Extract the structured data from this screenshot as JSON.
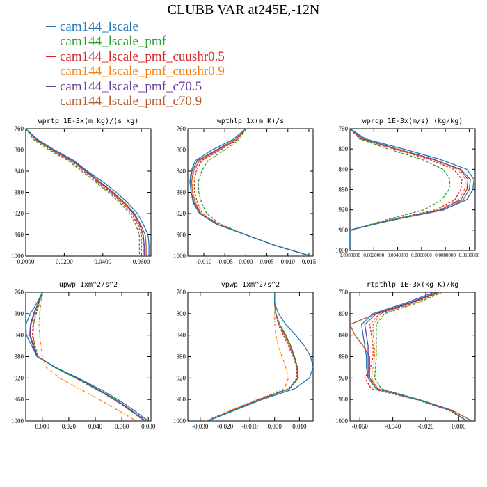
{
  "title": "CLUBB VAR at245E,-12N",
  "legend": [
    {
      "name": "cam144_lscale",
      "color": "#1f77b4"
    },
    {
      "name": "cam144_lscale_pmf",
      "color": "#2ca02c"
    },
    {
      "name": "cam144_lscale_pmf_cuushr0.5",
      "color": "#d62728"
    },
    {
      "name": "cam144_lscale_pmf_cuushr0.9",
      "color": "#ff7f0e"
    },
    {
      "name": "cam144_lscale_pmf_c70.5",
      "color": "#6a3d9a"
    },
    {
      "name": "cam144_lscale_pmf_c70.9",
      "color": "#b5582a"
    }
  ],
  "chart_data": [
    {
      "type": "line",
      "title": "wprtp  1E-3x(m kg)/(s kg)",
      "xlim": [
        0,
        0.065
      ],
      "xticks": [
        0,
        0.02,
        0.04,
        0.06
      ],
      "xticklabels": [
        "0.0000",
        "0.0200",
        "0.0400",
        "0.0600"
      ],
      "ylim": [
        760,
        1000
      ],
      "yticks": [
        760,
        800,
        840,
        880,
        920,
        960,
        1000
      ],
      "small_ticks": false,
      "levels": [
        760,
        780,
        800,
        820,
        840,
        860,
        880,
        900,
        920,
        940,
        960,
        980,
        1000
      ],
      "series": [
        {
          "name": "cam144_lscale",
          "values": [
            0.0,
            0.006,
            0.015,
            0.025,
            0.032,
            0.04,
            0.047,
            0.053,
            0.058,
            0.061,
            0.0635,
            0.064,
            0.064
          ]
        },
        {
          "name": "cam144_lscale_pmf",
          "values": [
            0.0,
            0.004,
            0.012,
            0.022,
            0.029,
            0.036,
            0.043,
            0.049,
            0.054,
            0.057,
            0.059,
            0.059,
            0.059
          ]
        },
        {
          "name": "cam144_lscale_pmf_cuushr0.5",
          "values": [
            0.0,
            0.005,
            0.013,
            0.023,
            0.03,
            0.037,
            0.044,
            0.05,
            0.055,
            0.058,
            0.06,
            0.06,
            0.06
          ]
        },
        {
          "name": "cam144_lscale_pmf_cuushr0.9",
          "values": [
            0.0,
            0.005,
            0.0135,
            0.0235,
            0.0305,
            0.0375,
            0.0445,
            0.0505,
            0.0555,
            0.0585,
            0.0605,
            0.061,
            0.061
          ]
        },
        {
          "name": "cam144_lscale_pmf_c70.5",
          "values": [
            0.0,
            0.0055,
            0.014,
            0.024,
            0.031,
            0.038,
            0.045,
            0.051,
            0.056,
            0.059,
            0.061,
            0.0615,
            0.0615
          ]
        },
        {
          "name": "cam144_lscale_pmf_c70.9",
          "values": [
            0.0,
            0.006,
            0.0145,
            0.0245,
            0.0315,
            0.0385,
            0.0455,
            0.0515,
            0.0565,
            0.0595,
            0.062,
            0.0625,
            0.0625
          ]
        }
      ]
    },
    {
      "type": "line",
      "title": "wpthlp  1x(m K)/s",
      "xlim": [
        -0.0138,
        0.016
      ],
      "xticks": [
        -0.01,
        -0.005,
        0,
        0.005,
        0.01,
        0.015
      ],
      "xticklabels": [
        "-0.010",
        "-0.005",
        "0.000",
        "0.005",
        "0.010",
        "0.015"
      ],
      "ylim": [
        760,
        1000
      ],
      "yticks": [
        760,
        800,
        840,
        880,
        920,
        960,
        1000
      ],
      "small_ticks": false,
      "levels": [
        760,
        780,
        800,
        820,
        840,
        860,
        880,
        900,
        920,
        940,
        960,
        980,
        1000
      ],
      "series": [
        {
          "name": "cam144_lscale",
          "values": [
            0.0,
            -0.003,
            -0.008,
            -0.012,
            -0.013,
            -0.0133,
            -0.013,
            -0.0125,
            -0.011,
            -0.007,
            0.0,
            0.007,
            0.0155
          ]
        },
        {
          "name": "cam144_lscale_pmf",
          "values": [
            0.0,
            -0.0015,
            -0.005,
            -0.009,
            -0.0105,
            -0.0113,
            -0.0112,
            -0.0105,
            -0.0093,
            -0.006,
            0.0,
            0.007,
            0.0155
          ]
        },
        {
          "name": "cam144_lscale_pmf_cuushr0.5",
          "values": [
            0.0,
            -0.002,
            -0.006,
            -0.0105,
            -0.0118,
            -0.0123,
            -0.0122,
            -0.0115,
            -0.0103,
            -0.0065,
            0.0,
            0.007,
            0.0155
          ]
        },
        {
          "name": "cam144_lscale_pmf_cuushr0.9",
          "values": [
            0.0,
            -0.0025,
            -0.0065,
            -0.011,
            -0.0123,
            -0.0128,
            -0.0126,
            -0.0119,
            -0.0106,
            -0.0067,
            0.0,
            0.007,
            0.0155
          ]
        },
        {
          "name": "cam144_lscale_pmf_c70.5",
          "values": [
            0.0,
            -0.0025,
            -0.007,
            -0.0115,
            -0.0128,
            -0.0132,
            -0.013,
            -0.0123,
            -0.0109,
            -0.0069,
            0.0,
            0.007,
            0.0155
          ]
        },
        {
          "name": "cam144_lscale_pmf_c70.9",
          "values": [
            0.0,
            -0.002,
            -0.0065,
            -0.011,
            -0.0125,
            -0.0129,
            -0.0127,
            -0.012,
            -0.0107,
            -0.0068,
            0.0,
            0.007,
            0.0155
          ]
        }
      ]
    },
    {
      "type": "line",
      "title": "wprcp  1E-3x(m/s) (kg/kg)",
      "xlim": [
        0,
        0.0105
      ],
      "xticks": [
        0,
        0.002,
        0.004,
        0.006,
        0.008,
        0.01
      ],
      "xticklabels": [
        "0.0000000",
        "0.0020000",
        "0.0040000",
        "0.0060000",
        "0.0080000",
        "0.0100000"
      ],
      "ylim": [
        760,
        1000
      ],
      "yticks": [
        760,
        800,
        840,
        880,
        920,
        960,
        1000
      ],
      "small_ticks": true,
      "levels": [
        760,
        780,
        800,
        820,
        840,
        860,
        880,
        900,
        920,
        940,
        960,
        980,
        1000
      ],
      "series": [
        {
          "name": "cam144_lscale",
          "values": [
            0.0,
            0.0013,
            0.0045,
            0.0075,
            0.0098,
            0.0104,
            0.0103,
            0.0098,
            0.0078,
            0.0035,
            0.0,
            0.0,
            0.0
          ]
        },
        {
          "name": "cam144_lscale_pmf",
          "values": [
            0.0,
            0.0008,
            0.0032,
            0.006,
            0.0078,
            0.0084,
            0.0083,
            0.0077,
            0.0062,
            0.003,
            0.0,
            0.0,
            0.0
          ]
        },
        {
          "name": "cam144_lscale_pmf_cuushr0.5",
          "values": [
            0.0,
            0.0009,
            0.0037,
            0.0066,
            0.0087,
            0.0094,
            0.0093,
            0.0088,
            0.0072,
            0.0033,
            0.0,
            0.0,
            0.0
          ]
        },
        {
          "name": "cam144_lscale_pmf_cuushr0.9",
          "values": [
            0.0,
            0.001,
            0.0039,
            0.0068,
            0.009,
            0.0097,
            0.0096,
            0.0091,
            0.0074,
            0.0034,
            0.0,
            0.0,
            0.0
          ]
        },
        {
          "name": "cam144_lscale_pmf_c70.5",
          "values": [
            0.0,
            0.0011,
            0.004,
            0.007,
            0.0092,
            0.0099,
            0.0098,
            0.0093,
            0.0076,
            0.0035,
            0.0,
            0.0,
            0.0
          ]
        },
        {
          "name": "cam144_lscale_pmf_c70.9",
          "values": [
            0.0,
            0.001,
            0.0038,
            0.0069,
            0.0093,
            0.0101,
            0.01,
            0.0095,
            0.0079,
            0.0036,
            0.0,
            0.0,
            0.0
          ]
        }
      ]
    },
    {
      "type": "line",
      "title": "upwp  1xm^2/s^2",
      "xlim": [
        -0.0125,
        0.082
      ],
      "xticks": [
        0,
        0.02,
        0.04,
        0.06,
        0.08
      ],
      "xticklabels": [
        "0.000",
        "0.020",
        "0.040",
        "0.060",
        "0.080"
      ],
      "ylim": [
        760,
        1000
      ],
      "yticks": [
        760,
        800,
        840,
        880,
        920,
        960,
        1000
      ],
      "small_ticks": false,
      "levels": [
        760,
        780,
        800,
        820,
        840,
        860,
        880,
        900,
        920,
        940,
        960,
        980,
        1000
      ],
      "series": [
        {
          "name": "cam144_lscale",
          "values": [
            0.0,
            -0.004,
            -0.009,
            -0.0125,
            -0.012,
            -0.008,
            -0.004,
            0.01,
            0.027,
            0.043,
            0.057,
            0.069,
            0.08
          ]
        },
        {
          "name": "cam144_lscale_pmf",
          "values": [
            0.0,
            -0.002,
            -0.0045,
            -0.0065,
            -0.007,
            -0.0055,
            -0.003,
            0.009,
            0.025,
            0.04,
            0.054,
            0.066,
            0.077
          ]
        },
        {
          "name": "cam144_lscale_pmf_cuushr0.5",
          "values": [
            0.0,
            -0.0025,
            -0.005,
            -0.007,
            -0.0075,
            -0.006,
            -0.0035,
            0.009,
            0.025,
            0.04,
            0.054,
            0.066,
            0.077
          ]
        },
        {
          "name": "cam144_lscale_pmf_cuushr0.9",
          "values": [
            0.0,
            -0.001,
            -0.002,
            -0.0025,
            -0.002,
            -0.001,
            0.0,
            0.003,
            0.013,
            0.028,
            0.043,
            0.057,
            0.071
          ]
        },
        {
          "name": "cam144_lscale_pmf_c70.5",
          "values": [
            0.0,
            -0.003,
            -0.0065,
            -0.009,
            -0.0095,
            -0.007,
            -0.0035,
            0.0095,
            0.026,
            0.041,
            0.055,
            0.067,
            0.078
          ]
        },
        {
          "name": "cam144_lscale_pmf_c70.9",
          "values": [
            0.0,
            -0.003,
            -0.006,
            -0.0085,
            -0.009,
            -0.0065,
            -0.0035,
            0.0095,
            0.026,
            0.041,
            0.055,
            0.067,
            0.078
          ]
        }
      ]
    },
    {
      "type": "line",
      "title": "vpwp  1xm^2/s^2",
      "xlim": [
        -0.035,
        0.0155
      ],
      "xticks": [
        -0.03,
        -0.02,
        -0.01,
        0,
        0.01
      ],
      "xticklabels": [
        "-0.030",
        "-0.020",
        "-0.010",
        "0.000",
        "0.010"
      ],
      "ylim": [
        760,
        1000
      ],
      "yticks": [
        760,
        800,
        840,
        880,
        920,
        960,
        1000
      ],
      "small_ticks": false,
      "levels": [
        760,
        780,
        800,
        820,
        840,
        860,
        880,
        900,
        920,
        940,
        960,
        980,
        1000
      ],
      "series": [
        {
          "name": "cam144_lscale",
          "values": [
            0.0,
            0.0,
            0.0015,
            0.0045,
            0.0085,
            0.012,
            0.0145,
            0.0155,
            0.014,
            0.008,
            -0.005,
            -0.016,
            -0.027
          ]
        },
        {
          "name": "cam144_lscale_pmf",
          "values": [
            0.0,
            0.0,
            0.0005,
            0.002,
            0.0045,
            0.0065,
            0.008,
            0.0092,
            0.0095,
            0.006,
            -0.006,
            -0.017,
            -0.027
          ]
        },
        {
          "name": "cam144_lscale_pmf_cuushr0.5",
          "values": [
            0.0,
            0.0,
            0.0005,
            0.0015,
            0.0035,
            0.0055,
            0.0075,
            0.0088,
            0.009,
            0.0055,
            -0.0065,
            -0.017,
            -0.027
          ]
        },
        {
          "name": "cam144_lscale_pmf_cuushr0.9",
          "values": [
            0.0,
            0.0,
            0.0,
            0.0,
            0.0005,
            0.0015,
            0.003,
            0.0045,
            0.0055,
            0.004,
            -0.007,
            -0.018,
            -0.028
          ]
        },
        {
          "name": "cam144_lscale_pmf_c70.5",
          "values": [
            0.0,
            0.0,
            0.0005,
            0.002,
            0.0045,
            0.0065,
            0.008,
            0.0092,
            0.0095,
            0.006,
            -0.006,
            -0.017,
            -0.027
          ]
        },
        {
          "name": "cam144_lscale_pmf_c70.9",
          "values": [
            0.0,
            0.0,
            0.0005,
            0.002,
            0.004,
            0.006,
            0.0078,
            0.009,
            0.0093,
            0.006,
            -0.006,
            -0.017,
            -0.027
          ]
        }
      ]
    },
    {
      "type": "line",
      "title": "rtpthlp  1E-3x(kg K)/kg",
      "xlim": [
        -0.066,
        0.01
      ],
      "xticks": [
        -0.06,
        -0.04,
        -0.02,
        0
      ],
      "xticklabels": [
        "-0.060",
        "-0.040",
        "-0.020",
        "0.000"
      ],
      "ylim": [
        760,
        1000
      ],
      "yticks": [
        760,
        800,
        840,
        880,
        920,
        960,
        1000
      ],
      "small_ticks": false,
      "levels": [
        760,
        780,
        800,
        820,
        840,
        860,
        880,
        900,
        920,
        940,
        960,
        980,
        1000
      ],
      "series": [
        {
          "name": "cam144_lscale",
          "values": [
            -0.015,
            -0.032,
            -0.052,
            -0.059,
            -0.058,
            -0.057,
            -0.056,
            -0.056,
            -0.055,
            -0.05,
            -0.025,
            -0.005,
            0.005
          ]
        },
        {
          "name": "cam144_lscale_pmf",
          "values": [
            -0.01,
            -0.025,
            -0.045,
            -0.05,
            -0.05,
            -0.05,
            -0.05,
            -0.0505,
            -0.051,
            -0.047,
            -0.024,
            -0.005,
            0.005
          ]
        },
        {
          "name": "cam144_lscale_pmf_cuushr0.5",
          "values": [
            -0.012,
            -0.028,
            -0.048,
            -0.054,
            -0.053,
            -0.052,
            -0.052,
            -0.0535,
            -0.057,
            -0.053,
            -0.026,
            -0.006,
            0.005
          ]
        },
        {
          "name": "cam144_lscale_pmf_cuushr0.9",
          "values": [
            -0.011,
            -0.027,
            -0.047,
            -0.052,
            -0.052,
            -0.051,
            -0.051,
            -0.052,
            -0.053,
            -0.049,
            -0.025,
            -0.0055,
            0.005
          ]
        },
        {
          "name": "cam144_lscale_pmf_c70.5",
          "values": [
            -0.013,
            -0.03,
            -0.05,
            -0.057,
            -0.056,
            -0.055,
            -0.055,
            -0.055,
            -0.055,
            -0.05,
            -0.025,
            -0.005,
            0.005
          ]
        },
        {
          "name": "cam144_lscale_pmf_c70.9",
          "values": [
            -0.012,
            -0.029,
            -0.05,
            -0.066,
            -0.063,
            -0.058,
            -0.054,
            -0.054,
            -0.054,
            -0.049,
            -0.024,
            -0.004,
            0.008
          ]
        }
      ]
    }
  ]
}
